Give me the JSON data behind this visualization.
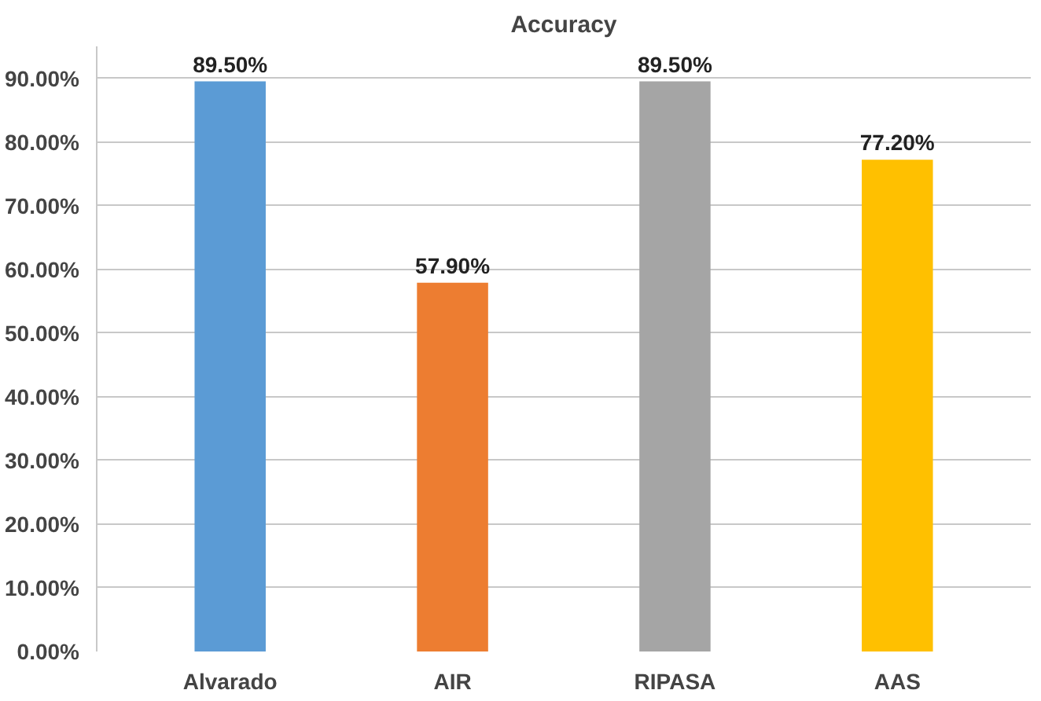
{
  "chart_data": {
    "type": "bar",
    "title": "Accuracy",
    "categories": [
      "Alvarado",
      "AIR",
      "RIPASA",
      "AAS"
    ],
    "values": [
      89.5,
      57.9,
      89.5,
      77.2
    ],
    "colors": [
      "#5b9bd5",
      "#ed7d31",
      "#a5a5a5",
      "#ffc000"
    ],
    "value_labels": [
      "89.50%",
      "57.90%",
      "89.50%",
      "77.20%"
    ],
    "ylim": [
      0,
      95
    ],
    "yticks": [
      {
        "value": 0,
        "label": "0.00%"
      },
      {
        "value": 10,
        "label": "10.00%"
      },
      {
        "value": 20,
        "label": "20.00%"
      },
      {
        "value": 30,
        "label": "30.00%"
      },
      {
        "value": 40,
        "label": "40.00%"
      },
      {
        "value": 50,
        "label": "50.00%"
      },
      {
        "value": 60,
        "label": "60.00%"
      },
      {
        "value": 70,
        "label": "70.00%"
      },
      {
        "value": 80,
        "label": "80.00%"
      },
      {
        "value": 90,
        "label": "90.00%"
      }
    ],
    "grid": "y"
  }
}
